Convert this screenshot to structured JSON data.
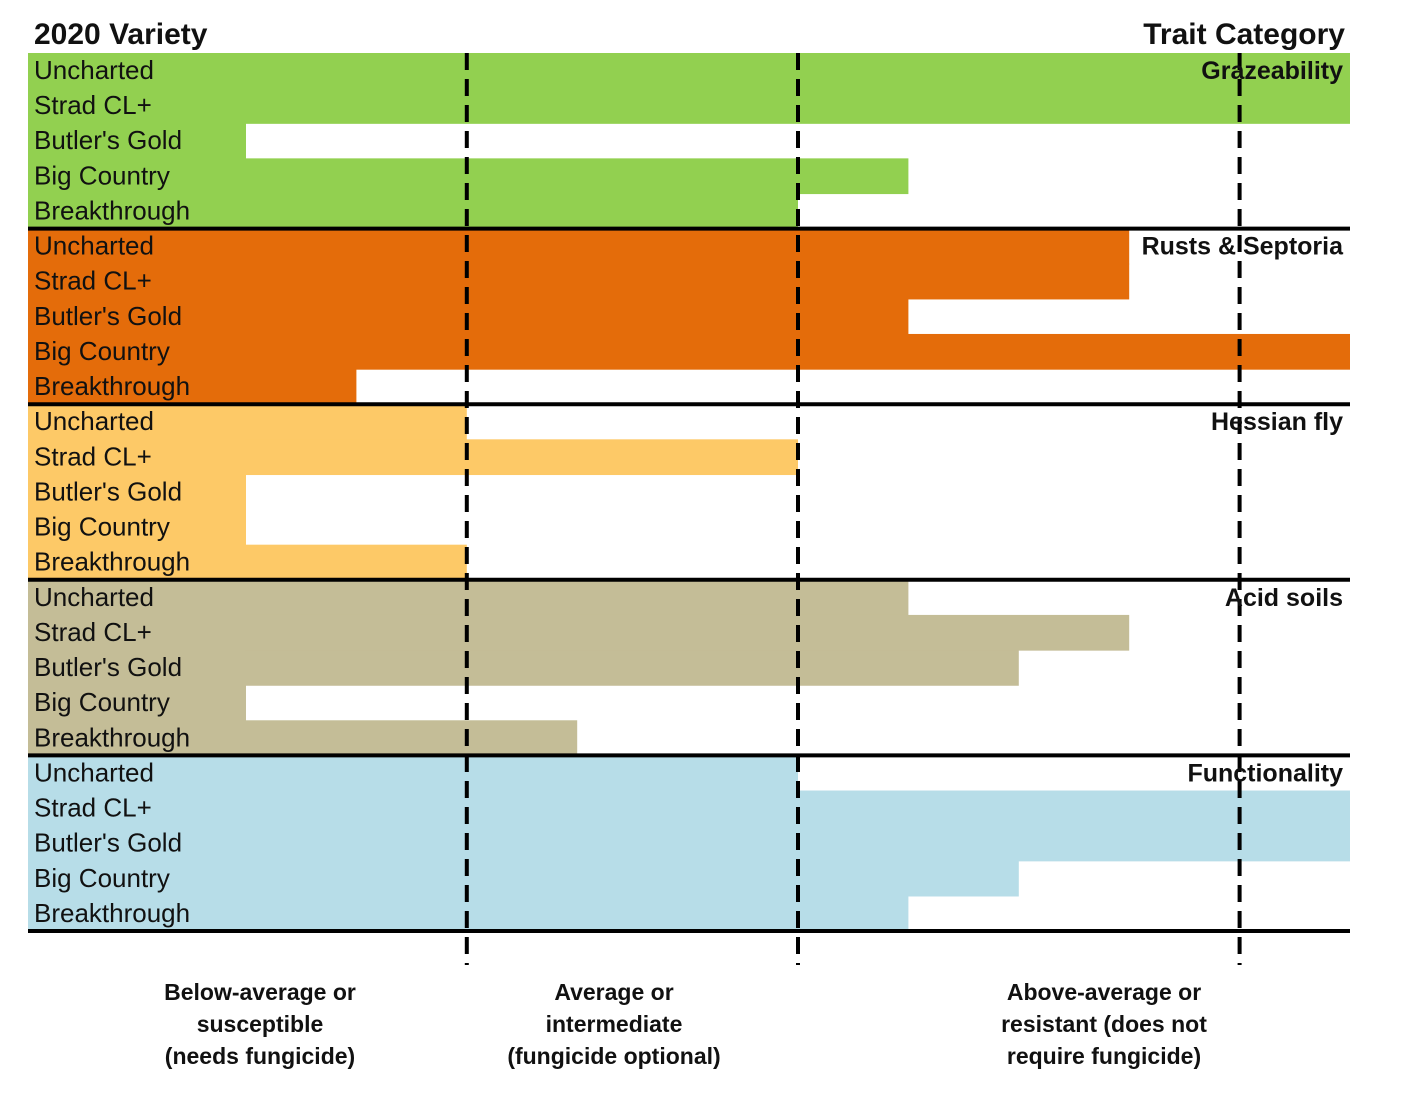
{
  "chart_data": {
    "type": "bar",
    "orientation": "horizontal",
    "title_left": "2020 Variety",
    "title_right": "Trait Category",
    "varieties": [
      "Uncharted",
      "Strad CL+",
      "Butler's Gold",
      "Big Country",
      "Breakthrough"
    ],
    "x_range": [
      0,
      5
    ],
    "reference_lines": [
      1,
      2.5,
      4.5
    ],
    "scale_labels": [
      {
        "at": 1,
        "lines": [
          "Below-average or",
          "susceptible",
          "(needs fungicide)"
        ]
      },
      {
        "at": 2.5,
        "lines": [
          "Average or",
          "intermediate",
          "(fungicide optional)"
        ]
      },
      {
        "at": 4.5,
        "lines": [
          "Above-average or",
          "resistant (does not",
          "require fungicide)"
        ]
      }
    ],
    "categories": [
      {
        "name": "Grazeability",
        "color": "#92d050",
        "values": [
          5,
          5,
          0,
          3,
          2.5
        ]
      },
      {
        "name": "Rusts & Septoria",
        "color": "#e46c0a",
        "values": [
          4,
          4,
          3,
          5,
          0.5
        ]
      },
      {
        "name": "Hessian fly",
        "color": "#fdc967",
        "values": [
          1,
          2.5,
          0,
          0,
          1
        ]
      },
      {
        "name": "Acid soils",
        "color": "#c4bd97",
        "values": [
          3,
          4,
          3.5,
          0,
          1.5
        ]
      },
      {
        "name": "Functionality",
        "color": "#b7dde8",
        "values": [
          2.5,
          5,
          5,
          3.5,
          3
        ]
      }
    ]
  }
}
